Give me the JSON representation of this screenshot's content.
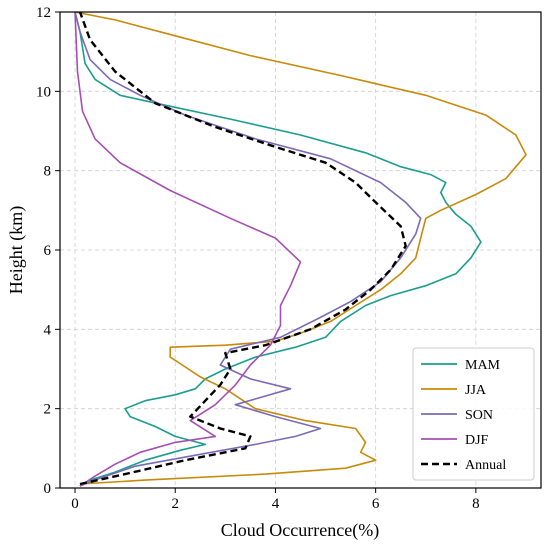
{
  "chart_data": {
    "type": "line",
    "title": "",
    "xlabel": "Cloud Occurrence(%)",
    "ylabel": "Height (km)",
    "xlim": [
      -0.3,
      9.3
    ],
    "ylim": [
      0,
      12
    ],
    "xticks": [
      0,
      2,
      4,
      6,
      8
    ],
    "yticks": [
      0,
      2,
      4,
      6,
      8,
      10,
      12
    ],
    "grid": true,
    "legend_position": "lower-right",
    "series": [
      {
        "name": "MAM",
        "color": "#1a9e8f",
        "dash": "solid",
        "points": [
          [
            0.1,
            0.05
          ],
          [
            0.3,
            0.2
          ],
          [
            0.8,
            0.4
          ],
          [
            1.4,
            0.7
          ],
          [
            2.1,
            0.95
          ],
          [
            2.6,
            1.1
          ],
          [
            2.0,
            1.3
          ],
          [
            1.6,
            1.55
          ],
          [
            1.1,
            1.8
          ],
          [
            1.0,
            2.0
          ],
          [
            1.4,
            2.2
          ],
          [
            2.0,
            2.35
          ],
          [
            2.4,
            2.5
          ],
          [
            2.6,
            2.75
          ],
          [
            3.0,
            3.0
          ],
          [
            3.6,
            3.3
          ],
          [
            4.4,
            3.55
          ],
          [
            5.0,
            3.8
          ],
          [
            5.3,
            4.2
          ],
          [
            5.8,
            4.6
          ],
          [
            6.3,
            4.85
          ],
          [
            7.0,
            5.1
          ],
          [
            7.6,
            5.4
          ],
          [
            7.9,
            5.8
          ],
          [
            8.1,
            6.2
          ],
          [
            7.9,
            6.6
          ],
          [
            7.6,
            6.9
          ],
          [
            7.4,
            7.2
          ],
          [
            7.3,
            7.45
          ],
          [
            7.4,
            7.7
          ],
          [
            7.1,
            7.9
          ],
          [
            6.5,
            8.1
          ],
          [
            5.8,
            8.45
          ],
          [
            4.5,
            8.9
          ],
          [
            3.1,
            9.3
          ],
          [
            1.8,
            9.65
          ],
          [
            0.9,
            9.9
          ],
          [
            0.4,
            10.3
          ],
          [
            0.2,
            10.7
          ],
          [
            0.1,
            11.5
          ],
          [
            0.0,
            12.0
          ]
        ]
      },
      {
        "name": "JJA",
        "color": "#c88a0a",
        "dash": "solid",
        "points": [
          [
            0.1,
            0.1
          ],
          [
            1.4,
            0.2
          ],
          [
            3.8,
            0.35
          ],
          [
            5.4,
            0.5
          ],
          [
            6.0,
            0.7
          ],
          [
            5.7,
            0.9
          ],
          [
            5.8,
            1.15
          ],
          [
            5.6,
            1.5
          ],
          [
            4.6,
            1.7
          ],
          [
            3.6,
            2.0
          ],
          [
            3.0,
            2.5
          ],
          [
            2.5,
            2.8
          ],
          [
            2.2,
            3.05
          ],
          [
            1.9,
            3.3
          ],
          [
            1.9,
            3.55
          ],
          [
            3.0,
            3.6
          ],
          [
            4.0,
            3.7
          ],
          [
            4.5,
            3.9
          ],
          [
            5.1,
            4.2
          ],
          [
            5.6,
            4.6
          ],
          [
            6.1,
            5.0
          ],
          [
            6.5,
            5.4
          ],
          [
            6.8,
            5.8
          ],
          [
            6.9,
            6.3
          ],
          [
            7.0,
            6.8
          ],
          [
            7.3,
            7.0
          ],
          [
            8.0,
            7.4
          ],
          [
            8.6,
            7.8
          ],
          [
            8.8,
            8.1
          ],
          [
            9.0,
            8.4
          ],
          [
            8.8,
            8.9
          ],
          [
            8.2,
            9.4
          ],
          [
            7.0,
            9.9
          ],
          [
            5.3,
            10.4
          ],
          [
            3.5,
            10.9
          ],
          [
            2.0,
            11.4
          ],
          [
            0.8,
            11.8
          ],
          [
            0.0,
            12.0
          ]
        ]
      },
      {
        "name": "SON",
        "color": "#7b6bb5",
        "dash": "solid",
        "points": [
          [
            0.1,
            0.05
          ],
          [
            0.5,
            0.25
          ],
          [
            1.2,
            0.55
          ],
          [
            2.5,
            0.85
          ],
          [
            3.6,
            1.1
          ],
          [
            4.4,
            1.3
          ],
          [
            4.9,
            1.5
          ],
          [
            4.0,
            1.8
          ],
          [
            3.2,
            2.1
          ],
          [
            4.3,
            2.5
          ],
          [
            3.5,
            2.75
          ],
          [
            2.9,
            3.1
          ],
          [
            3.1,
            3.5
          ],
          [
            4.1,
            3.8
          ],
          [
            4.9,
            4.3
          ],
          [
            5.5,
            4.7
          ],
          [
            6.1,
            5.2
          ],
          [
            6.5,
            5.8
          ],
          [
            6.8,
            6.4
          ],
          [
            6.9,
            6.8
          ],
          [
            6.6,
            7.2
          ],
          [
            6.1,
            7.7
          ],
          [
            5.1,
            8.3
          ],
          [
            3.6,
            8.8
          ],
          [
            2.2,
            9.4
          ],
          [
            1.3,
            9.9
          ],
          [
            0.7,
            10.3
          ],
          [
            0.3,
            10.8
          ],
          [
            0.1,
            11.5
          ],
          [
            0.0,
            12.0
          ]
        ]
      },
      {
        "name": "DJF",
        "color": "#a64fb3",
        "dash": "solid",
        "points": [
          [
            0.1,
            0.05
          ],
          [
            0.4,
            0.3
          ],
          [
            0.8,
            0.6
          ],
          [
            1.3,
            0.9
          ],
          [
            2.0,
            1.15
          ],
          [
            2.8,
            1.3
          ],
          [
            2.3,
            1.7
          ],
          [
            2.8,
            2.1
          ],
          [
            3.2,
            2.6
          ],
          [
            3.5,
            3.1
          ],
          [
            3.9,
            3.6
          ],
          [
            4.1,
            4.1
          ],
          [
            4.1,
            4.6
          ],
          [
            4.3,
            5.1
          ],
          [
            4.5,
            5.7
          ],
          [
            4.0,
            6.3
          ],
          [
            3.1,
            6.8
          ],
          [
            1.9,
            7.5
          ],
          [
            0.9,
            8.2
          ],
          [
            0.4,
            8.8
          ],
          [
            0.15,
            9.5
          ],
          [
            0.05,
            10.5
          ],
          [
            0.0,
            12.0
          ]
        ]
      },
      {
        "name": "Annual",
        "color": "#000000",
        "dash": "dashed",
        "points": [
          [
            0.1,
            0.1
          ],
          [
            1.0,
            0.35
          ],
          [
            2.2,
            0.7
          ],
          [
            3.4,
            1.0
          ],
          [
            3.5,
            1.3
          ],
          [
            2.9,
            1.5
          ],
          [
            2.3,
            1.8
          ],
          [
            2.6,
            2.2
          ],
          [
            2.9,
            2.6
          ],
          [
            3.1,
            3.0
          ],
          [
            3.0,
            3.4
          ],
          [
            3.8,
            3.6
          ],
          [
            4.7,
            4.0
          ],
          [
            5.4,
            4.5
          ],
          [
            5.9,
            5.0
          ],
          [
            6.3,
            5.5
          ],
          [
            6.6,
            6.1
          ],
          [
            6.5,
            6.6
          ],
          [
            6.0,
            7.2
          ],
          [
            5.6,
            7.7
          ],
          [
            5.0,
            8.2
          ],
          [
            4.0,
            8.6
          ],
          [
            2.8,
            9.1
          ],
          [
            1.6,
            9.7
          ],
          [
            0.8,
            10.5
          ],
          [
            0.3,
            11.3
          ],
          [
            0.1,
            12.0
          ]
        ]
      }
    ]
  }
}
